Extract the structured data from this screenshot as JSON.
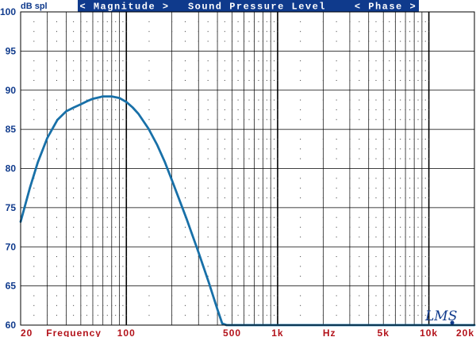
{
  "chart_data": {
    "type": "line",
    "ylabel": "dB spl",
    "header": {
      "left": "< Magnitude >",
      "center": "Sound Pressure Level",
      "right": "< Phase >"
    },
    "xscale": "log",
    "xlim": [
      20,
      20000
    ],
    "ylim": [
      60,
      100
    ],
    "yticks": [
      60,
      65,
      70,
      75,
      80,
      85,
      90,
      95,
      100
    ],
    "xtick_labels": [
      {
        "x": 20,
        "label": "20"
      },
      {
        "x": 100,
        "label": "100"
      },
      {
        "x": 500,
        "label": "500"
      },
      {
        "x": 1000,
        "label": "1k"
      },
      {
        "x": 5000,
        "label": "5k"
      },
      {
        "x": 10000,
        "label": "10k"
      },
      {
        "x": 20000,
        "label": "20k"
      }
    ],
    "axis_words": [
      {
        "x": 45,
        "label": "Frequency"
      },
      {
        "x": 2200,
        "label": "Hz"
      }
    ],
    "grid": true,
    "series": [
      {
        "color": "#1870a8",
        "x": [
          20,
          23,
          26,
          30,
          35,
          40,
          45,
          50,
          55,
          60,
          70,
          80,
          90,
          100,
          110,
          120,
          140,
          160,
          180,
          200,
          250,
          300,
          350,
          400,
          430,
          460,
          500,
          1000,
          5000,
          10000,
          20000
        ],
        "y": [
          73.2,
          77.5,
          80.8,
          83.9,
          86.2,
          87.3,
          87.8,
          88.2,
          88.6,
          88.9,
          89.2,
          89.2,
          89.0,
          88.5,
          87.8,
          87.0,
          85.1,
          83.0,
          80.8,
          78.5,
          73.6,
          69.3,
          65.5,
          62.0,
          60.2,
          60.0,
          60.0,
          60.0,
          60.0,
          60.0,
          60.0
        ]
      }
    ]
  },
  "logo": "LMS"
}
